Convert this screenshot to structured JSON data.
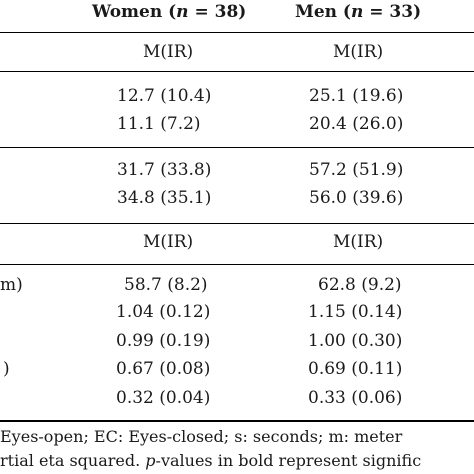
{
  "table": {
    "header": {
      "women_label": "Women (",
      "women_n": "n",
      "women_count": " = 38)",
      "men_label": "Men (",
      "men_n": "n",
      "men_count": " = 33)"
    },
    "subheader_1": {
      "women": "M(IR)",
      "men": "M(IR)"
    },
    "group_1": [
      {
        "women": "12.7 (10.4)",
        "men": "25.1 (19.6)"
      },
      {
        "women": "11.1 (7.2)",
        "men": "20.4 (26.0)"
      }
    ],
    "group_2": [
      {
        "women": "31.7 (33.8)",
        "men": "57.2 (51.9)"
      },
      {
        "women": "34.8 (35.1)",
        "men": "56.0 (39.6)"
      }
    ],
    "subheader_2": {
      "women": "M(IR)",
      "men": "M(IR)"
    },
    "group_3": [
      {
        "label": "m)",
        "women": "58.7 (8.2)",
        "men": "62.8 (9.2)"
      },
      {
        "label": "",
        "women": "1.04 (0.12)",
        "men": "1.15 (0.14)"
      },
      {
        "label": "",
        "women": "0.99 (0.19)",
        "men": "1.00 (0.30)"
      },
      {
        "label": ")",
        "women": "0.67 (0.08)",
        "men": "0.69 (0.11)"
      },
      {
        "label": "",
        "women": "0.32 (0.04)",
        "men": "0.33 (0.06)"
      }
    ]
  },
  "footnote": {
    "line1": "Eyes-open; EC: Eyes-closed; s: seconds; m: meter",
    "line2_pre": "rtial eta squared. ",
    "line2_p": "p",
    "line2_post": "-values in bold represent signific"
  }
}
